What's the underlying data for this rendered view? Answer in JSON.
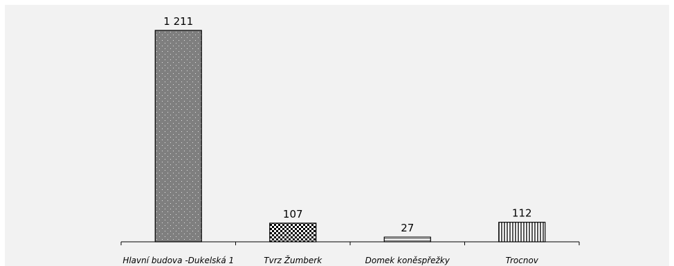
{
  "chart_data": {
    "type": "bar",
    "categories": [
      "Hlavní budova -Dukelská 1",
      "Tvrz Žumberk",
      "Domek koněspřežky",
      "Trocnov"
    ],
    "values": [
      1211,
      107,
      27,
      112
    ],
    "value_labels": [
      "1 211",
      "107",
      "27",
      "112"
    ],
    "title": "",
    "xlabel": "",
    "ylabel": "",
    "ylim": [
      0,
      1211
    ],
    "grid": false,
    "legend": "none",
    "bar_styles": [
      "dotted-gray",
      "checkerboard",
      "horizontal-stripes",
      "vertical-stripes"
    ]
  }
}
